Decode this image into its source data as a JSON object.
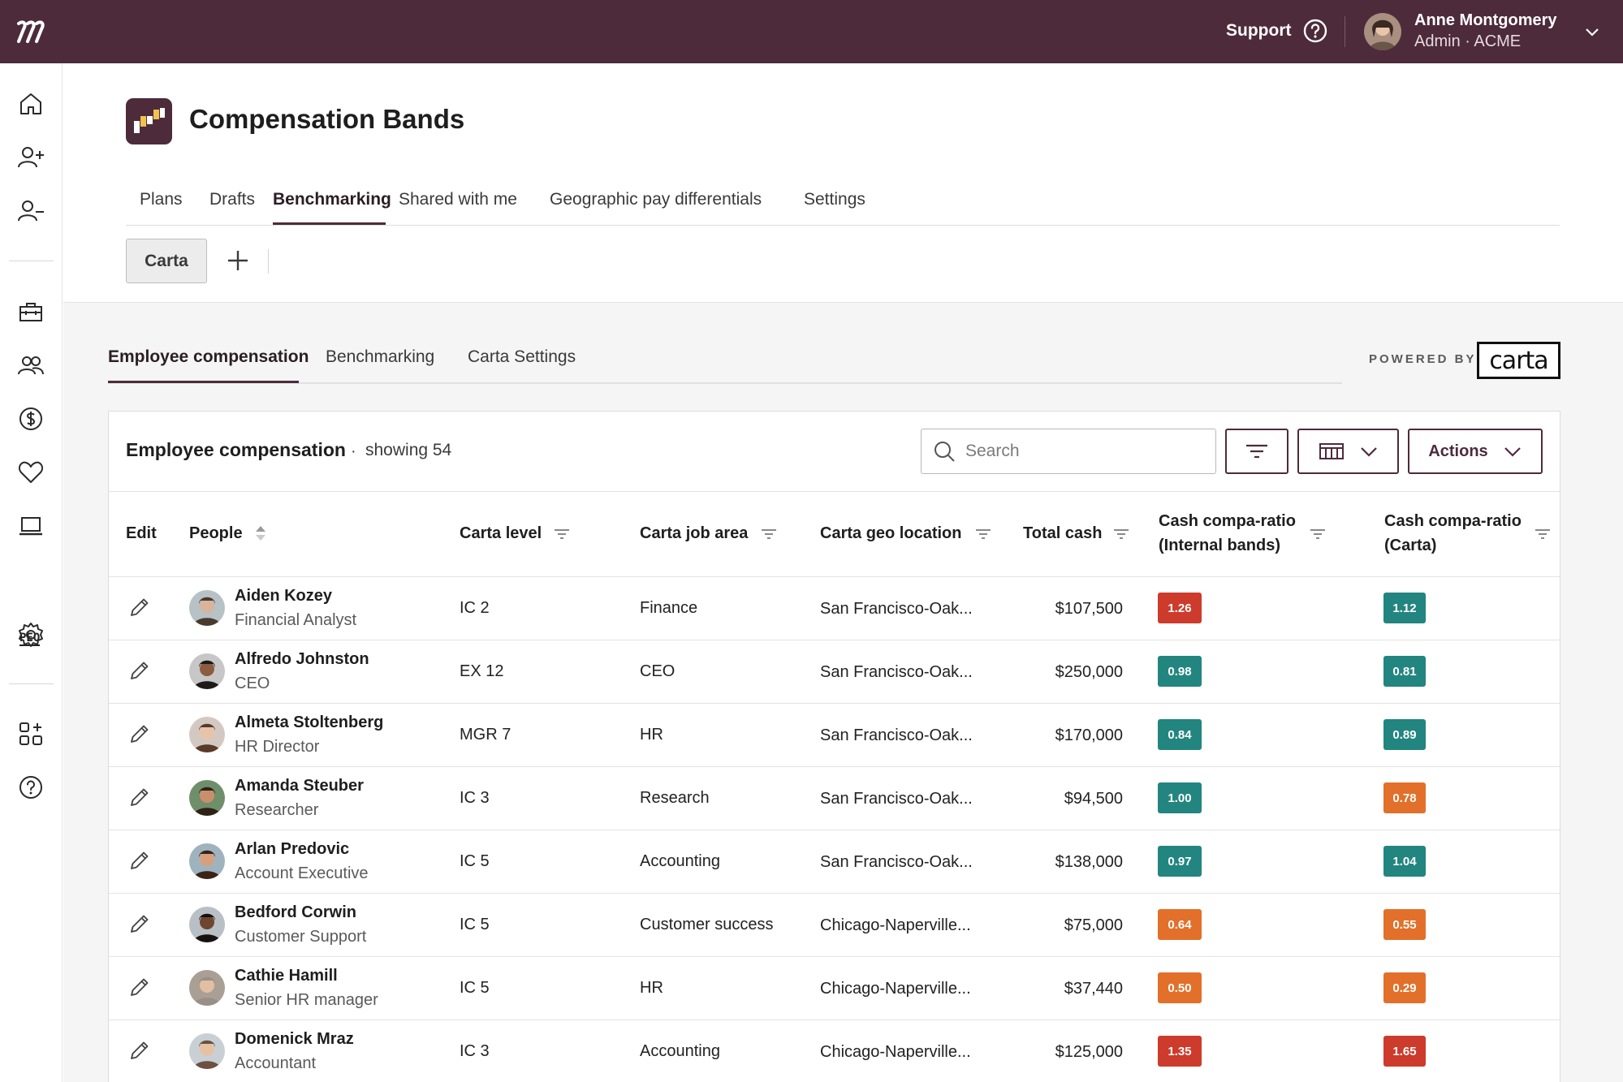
{
  "topbar": {
    "support_label": "Support",
    "user_name": "Anne Montgomery",
    "user_role": "Admin · ACME"
  },
  "sidebar": {
    "icons": [
      "home-icon",
      "person-add-icon",
      "person-remove-icon",
      "toolbox-icon",
      "people-icon",
      "dollar-icon",
      "heart-icon",
      "laptop-icon",
      "peo-icon",
      "gear-icon",
      "apps-add-icon",
      "help-icon"
    ],
    "peo_label": "PEO"
  },
  "header": {
    "title": "Compensation Bands",
    "tabs": [
      "Plans",
      "Drafts",
      "Benchmarking",
      "Shared with me",
      "Geographic pay differentials",
      "Settings"
    ],
    "active_tab": "Benchmarking",
    "pill_label": "Carta"
  },
  "subtabs": {
    "items": [
      "Employee compensation",
      "Benchmarking",
      "Carta Settings"
    ],
    "active": "Employee compensation",
    "powered_by": "POWERED BY",
    "carta_logo_text": "carta"
  },
  "card": {
    "title": "Employee compensation",
    "separator": "·",
    "count_text": "showing 54",
    "search_placeholder": "Search",
    "actions_label": "Actions"
  },
  "table": {
    "headers": {
      "edit": "Edit",
      "people": "People",
      "level": "Carta level",
      "job_area": "Carta job area",
      "geo": "Carta geo location",
      "total_cash": "Total cash",
      "ratio_internal_1": "Cash compa-ratio",
      "ratio_internal_2": "(Internal bands)",
      "ratio_carta_1": "Cash compa-ratio",
      "ratio_carta_2": "(Carta)"
    },
    "rows": [
      {
        "name": "Aiden Kozey",
        "title": "Financial Analyst",
        "level": "IC 2",
        "job_area": "Finance",
        "geo": "San Francisco-Oak...",
        "total_cash": "$107,500",
        "ratio_internal": "1.26",
        "ratio_internal_status": "high",
        "ratio_carta": "1.12",
        "ratio_carta_status": "ok"
      },
      {
        "name": "Alfredo Johnston",
        "title": "CEO",
        "level": "EX 12",
        "job_area": "CEO",
        "geo": "San Francisco-Oak...",
        "total_cash": "$250,000",
        "ratio_internal": "0.98",
        "ratio_internal_status": "ok",
        "ratio_carta": "0.81",
        "ratio_carta_status": "ok"
      },
      {
        "name": "Almeta Stoltenberg",
        "title": "HR Director",
        "level": "MGR 7",
        "job_area": "HR",
        "geo": "San Francisco-Oak...",
        "total_cash": "$170,000",
        "ratio_internal": "0.84",
        "ratio_internal_status": "ok",
        "ratio_carta": "0.89",
        "ratio_carta_status": "ok"
      },
      {
        "name": "Amanda Steuber",
        "title": "Researcher",
        "level": "IC 3",
        "job_area": "Research",
        "geo": "San Francisco-Oak...",
        "total_cash": "$94,500",
        "ratio_internal": "1.00",
        "ratio_internal_status": "ok",
        "ratio_carta": "0.78",
        "ratio_carta_status": "low"
      },
      {
        "name": "Arlan Predovic",
        "title": "Account Executive",
        "level": "IC 5",
        "job_area": "Accounting",
        "geo": "San Francisco-Oak...",
        "total_cash": "$138,000",
        "ratio_internal": "0.97",
        "ratio_internal_status": "ok",
        "ratio_carta": "1.04",
        "ratio_carta_status": "ok"
      },
      {
        "name": "Bedford Corwin",
        "title": "Customer Support",
        "level": "IC 5",
        "job_area": "Customer success",
        "geo": "Chicago-Naperville...",
        "total_cash": "$75,000",
        "ratio_internal": "0.64",
        "ratio_internal_status": "low",
        "ratio_carta": "0.55",
        "ratio_carta_status": "low"
      },
      {
        "name": "Cathie Hamill",
        "title": "Senior HR manager",
        "level": "IC 5",
        "job_area": "HR",
        "geo": "Chicago-Naperville...",
        "total_cash": "$37,440",
        "ratio_internal": "0.50",
        "ratio_internal_status": "low",
        "ratio_carta": "0.29",
        "ratio_carta_status": "low"
      },
      {
        "name": "Domenick Mraz",
        "title": "Accountant",
        "level": "IC 3",
        "job_area": "Accounting",
        "geo": "Chicago-Naperville...",
        "total_cash": "$125,000",
        "ratio_internal": "1.35",
        "ratio_internal_status": "high",
        "ratio_carta": "1.65",
        "ratio_carta_status": "high"
      }
    ]
  },
  "colors": {
    "brand": "#4d2b3a",
    "ratio_ok": "#23857f",
    "ratio_low": "#e2702a",
    "ratio_high": "#cc3b2b"
  }
}
